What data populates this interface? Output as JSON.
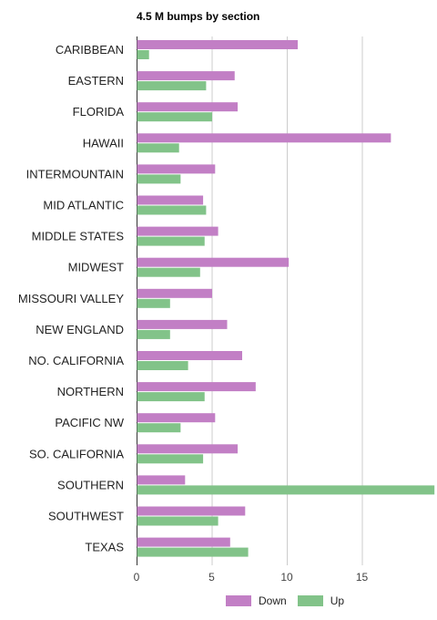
{
  "chart_data": {
    "type": "bar",
    "orientation": "horizontal",
    "title": "4.5 M bumps by section",
    "categories": [
      "CARIBBEAN",
      "EASTERN",
      "FLORIDA",
      "HAWAII",
      "INTERMOUNTAIN",
      "MID ATLANTIC",
      "MIDDLE STATES",
      "MIDWEST",
      "MISSOURI VALLEY",
      "NEW ENGLAND",
      "NO. CALIFORNIA",
      "NORTHERN",
      "PACIFIC NW",
      "SO. CALIFORNIA",
      "SOUTHERN",
      "SOUTHWEST",
      "TEXAS"
    ],
    "series": [
      {
        "name": "Down",
        "color": "#c27fc5",
        "values": [
          10.7,
          6.5,
          6.7,
          16.9,
          5.2,
          4.4,
          5.4,
          10.1,
          5.0,
          6.0,
          7.0,
          7.9,
          5.2,
          6.7,
          3.2,
          7.2,
          6.2
        ]
      },
      {
        "name": "Up",
        "color": "#82c389",
        "values": [
          0.8,
          4.6,
          5.0,
          2.8,
          2.9,
          4.6,
          4.5,
          4.2,
          2.2,
          2.2,
          3.4,
          4.5,
          2.9,
          4.4,
          19.8,
          5.4,
          7.4
        ]
      }
    ],
    "xlim": [
      0,
      20
    ],
    "xticks": [
      0,
      5,
      10,
      15
    ],
    "xlabel": "",
    "ylabel": "",
    "grid": true,
    "legend_position": "bottom"
  }
}
